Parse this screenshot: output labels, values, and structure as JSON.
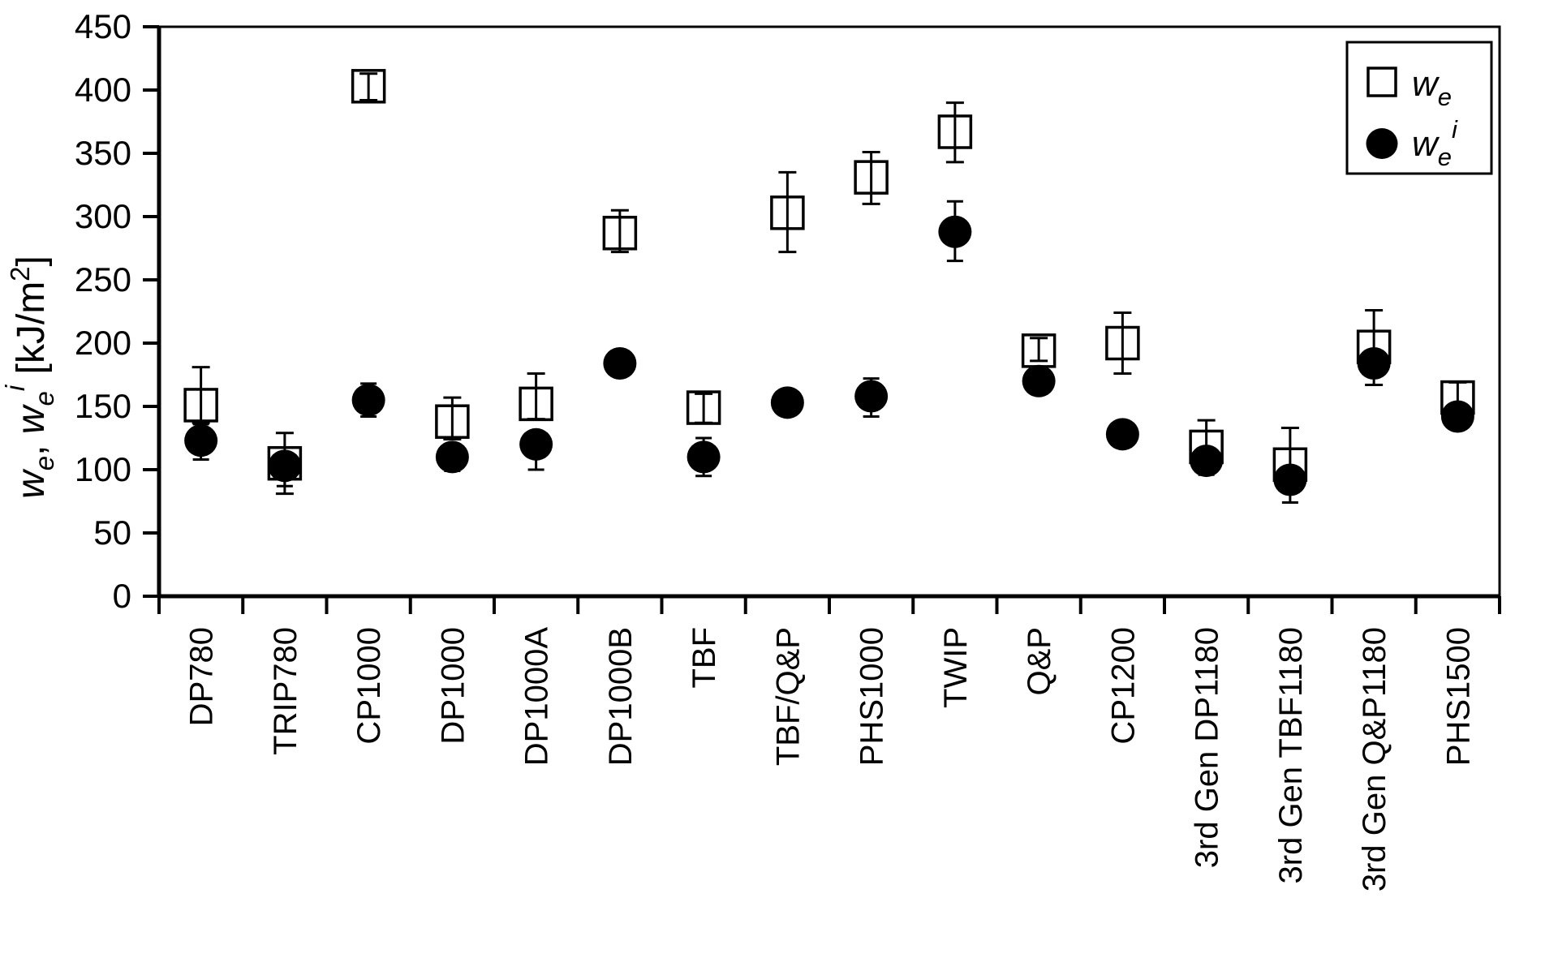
{
  "figure": {
    "background_color": "#ffffff",
    "foreground_color": "#000000"
  },
  "axis_y": {
    "w1": "w",
    "e1": "e",
    "comma": ", ",
    "w2": "w",
    "e2": "e",
    "i": "i",
    "unit_open": " [kJ/m",
    "unit_exp": "2",
    "unit_close": "]"
  },
  "legend": {
    "item1": {
      "w": "w",
      "sub": "e"
    },
    "item2": {
      "w": "w",
      "sub": "e",
      "sup": "i"
    }
  },
  "chart_data": {
    "type": "scatter",
    "title": "",
    "xlabel": "",
    "ylabel": "w_e, w_e^i [kJ/m^2]",
    "ylim": [
      0,
      450
    ],
    "yticks": [
      0,
      50,
      100,
      150,
      200,
      250,
      300,
      350,
      400,
      450
    ],
    "grid": false,
    "legend_position": "top-right-inside",
    "background_color": "#ffffff",
    "axis_color": "#000000",
    "categories": [
      "DP780",
      "TRIP780",
      "CP1000",
      "DP1000",
      "DP1000A",
      "DP1000B",
      "TBF",
      "TBF/Q&P",
      "PHS1000",
      "TWIP",
      "Q&P",
      "CP1200",
      "3rd Gen DP1180",
      "3rd Gen TBF1180",
      "3rd Gen Q&P1180",
      "PHS1500"
    ],
    "series": [
      {
        "name": "we",
        "label": "w_e",
        "marker": "open-square",
        "marker_fill": "#ffffff",
        "marker_stroke": "#000000",
        "values": [
          151,
          105,
          403,
          138,
          152,
          287,
          149,
          303,
          331,
          367,
          194,
          200,
          118,
          104,
          197,
          157
        ],
        "err_up": [
          30,
          24,
          10,
          19,
          24,
          18,
          11,
          32,
          20,
          23,
          10,
          24,
          21,
          29,
          29,
          12
        ],
        "err_down": [
          14,
          24,
          11,
          14,
          12,
          15,
          12,
          31,
          21,
          24,
          8,
          24,
          13,
          16,
          30,
          9
        ]
      },
      {
        "name": "wei",
        "label": "w_e^i",
        "marker": "filled-circle",
        "marker_fill": "#000000",
        "marker_stroke": "#000000",
        "values": [
          123,
          103,
          155,
          110,
          120,
          184,
          110,
          153,
          158,
          288,
          170,
          128,
          107,
          92,
          184,
          142
        ],
        "err_up": [
          13,
          10,
          13,
          9,
          10,
          5,
          15,
          7,
          14,
          24,
          6,
          6,
          6,
          8,
          6,
          8
        ],
        "err_down": [
          15,
          16,
          13,
          11,
          20,
          5,
          15,
          7,
          16,
          23,
          8,
          8,
          11,
          18,
          9,
          9
        ]
      }
    ]
  }
}
